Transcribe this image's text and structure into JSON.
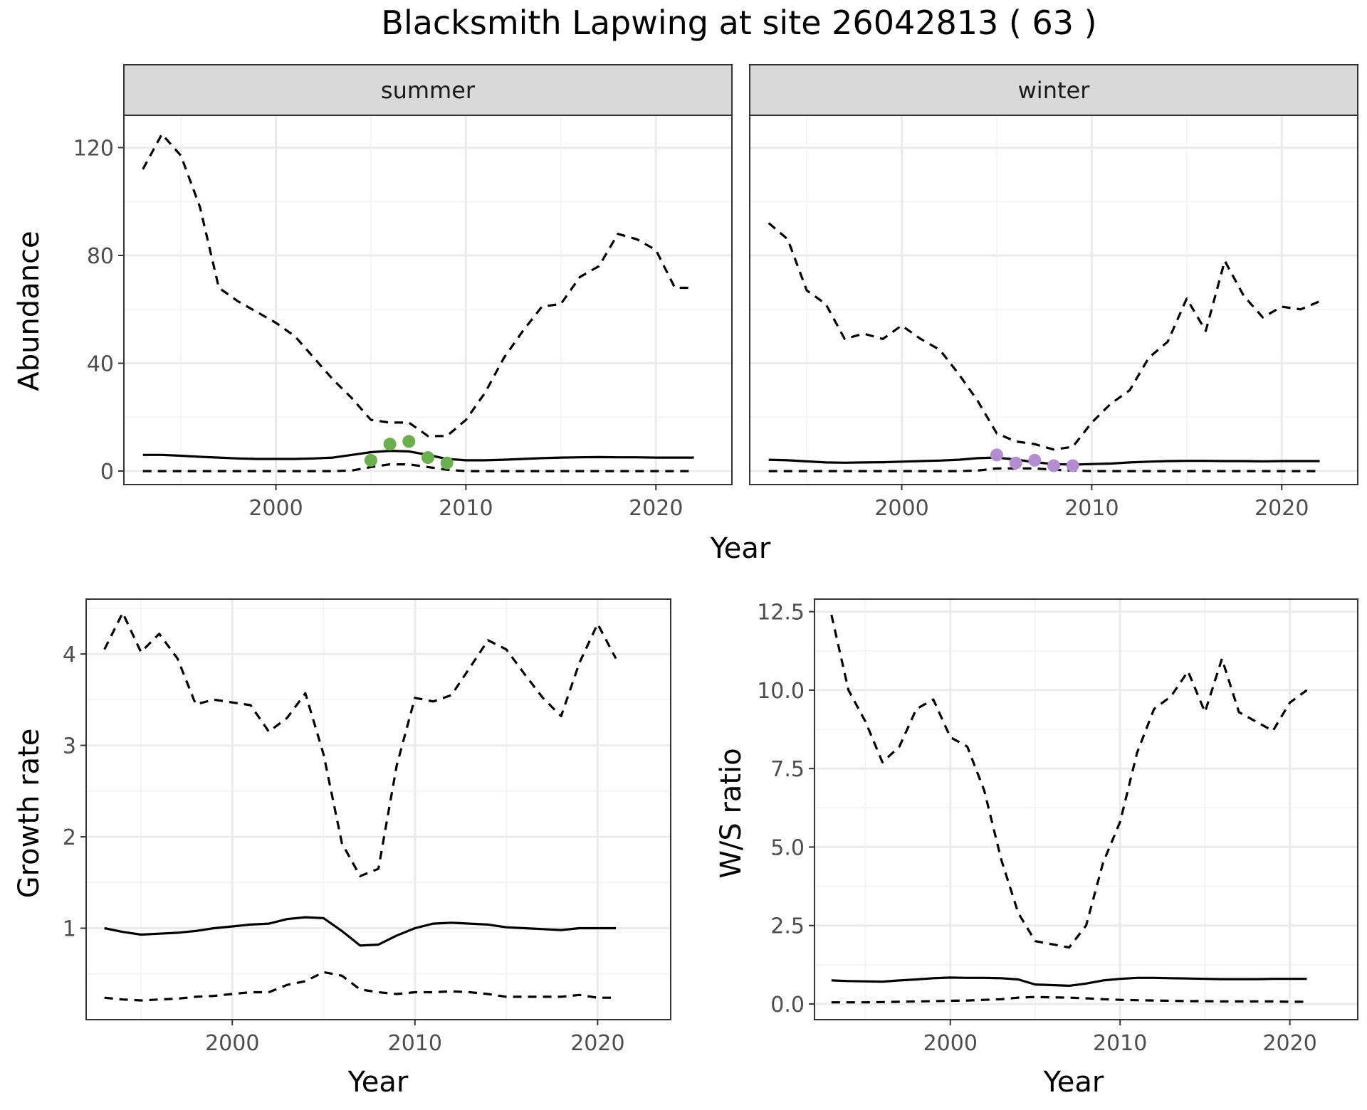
{
  "title": "Blacksmith Lapwing at site 26042813 ( 63 )",
  "colors": {
    "summer_points": "#6ab04c",
    "winter_points": "#b28dd1",
    "line": "#000000",
    "grid": "#ebebeb"
  },
  "chart_data": [
    {
      "id": "abundance-summer",
      "type": "line",
      "facet": "summer",
      "xlabel": "Year",
      "ylabel": "Abundance",
      "xlim": [
        1992,
        2024
      ],
      "ylim": [
        -5,
        132
      ],
      "xticks": [
        2000,
        2010,
        2020
      ],
      "yticks": [
        0,
        40,
        80,
        120
      ],
      "x": [
        1993,
        1994,
        1995,
        1996,
        1997,
        1998,
        1999,
        2000,
        2001,
        2002,
        2003,
        2004,
        2005,
        2006,
        2007,
        2008,
        2009,
        2010,
        2011,
        2012,
        2013,
        2014,
        2015,
        2016,
        2017,
        2018,
        2019,
        2020,
        2021,
        2022
      ],
      "series": [
        {
          "role": "upper",
          "style": "dashed",
          "values": [
            112,
            125,
            117,
            98,
            68,
            63,
            59,
            55,
            50,
            42,
            34,
            27,
            19,
            18,
            18,
            13,
            13,
            19,
            29,
            42,
            52,
            61,
            62,
            72,
            76,
            88,
            86,
            82,
            68,
            68
          ]
        },
        {
          "role": "mean",
          "style": "solid",
          "values": [
            6,
            6,
            5.7,
            5.3,
            5,
            4.7,
            4.5,
            4.5,
            4.5,
            4.7,
            5,
            6,
            7,
            7.5,
            7.3,
            6,
            4.5,
            4,
            4,
            4.2,
            4.5,
            4.8,
            5,
            5.1,
            5.2,
            5.1,
            5.1,
            5,
            5,
            5
          ]
        },
        {
          "role": "lower",
          "style": "dashed",
          "values": [
            0,
            0,
            0,
            0,
            0,
            0,
            0,
            0,
            0,
            0,
            0,
            0.2,
            1.5,
            2.5,
            2.5,
            1.5,
            0.5,
            0,
            0,
            0,
            0,
            0,
            0,
            0,
            0,
            0,
            0,
            0,
            0,
            0
          ]
        }
      ],
      "points": {
        "x": [
          2005,
          2006,
          2007,
          2008,
          2009
        ],
        "y": [
          4,
          10,
          11,
          5,
          3
        ]
      }
    },
    {
      "id": "abundance-winter",
      "type": "line",
      "facet": "winter",
      "xlabel": "Year",
      "ylabel": "",
      "xlim": [
        1992,
        2024
      ],
      "ylim": [
        -5,
        132
      ],
      "xticks": [
        2000,
        2010,
        2020
      ],
      "yticks": [
        0,
        40,
        80,
        120
      ],
      "x": [
        1993,
        1994,
        1995,
        1996,
        1997,
        1998,
        1999,
        2000,
        2001,
        2002,
        2003,
        2004,
        2005,
        2006,
        2007,
        2008,
        2009,
        2010,
        2011,
        2012,
        2013,
        2014,
        2015,
        2016,
        2017,
        2018,
        2019,
        2020,
        2021,
        2022
      ],
      "series": [
        {
          "role": "upper",
          "style": "dashed",
          "values": [
            92,
            86,
            67,
            62,
            49,
            51,
            49,
            54,
            49,
            45,
            36,
            26,
            14,
            11,
            10,
            8,
            9,
            18,
            25,
            30,
            42,
            48,
            64,
            52,
            78,
            65,
            57,
            61,
            60,
            63
          ]
        },
        {
          "role": "mean",
          "style": "solid",
          "values": [
            4.2,
            4,
            3.6,
            3.2,
            3.1,
            3.2,
            3.3,
            3.5,
            3.7,
            3.9,
            4.2,
            4.8,
            5,
            4.3,
            3.3,
            2.6,
            2.4,
            2.6,
            2.8,
            3.2,
            3.5,
            3.7,
            3.8,
            3.8,
            3.7,
            3.7,
            3.6,
            3.7,
            3.7,
            3.7
          ]
        },
        {
          "role": "lower",
          "style": "dashed",
          "values": [
            0,
            0,
            0,
            0,
            0,
            0,
            0,
            0,
            0,
            0,
            0,
            0.2,
            1,
            1,
            1,
            0.5,
            0.2,
            0,
            0,
            0,
            0,
            0,
            0,
            0,
            0,
            0,
            0,
            0,
            0,
            0
          ]
        }
      ],
      "points": {
        "x": [
          2005,
          2006,
          2007,
          2008,
          2009
        ],
        "y": [
          6,
          3,
          4,
          2,
          2
        ]
      }
    },
    {
      "id": "growth-rate",
      "type": "line",
      "xlabel": "Year",
      "ylabel": "Growth rate",
      "xlim": [
        1992,
        2024
      ],
      "ylim": [
        0,
        4.6
      ],
      "xticks": [
        2000,
        2010,
        2020
      ],
      "yticks": [
        1,
        2,
        3,
        4
      ],
      "x": [
        1993,
        1994,
        1995,
        1996,
        1997,
        1998,
        1999,
        2000,
        2001,
        2002,
        2003,
        2004,
        2005,
        2006,
        2007,
        2008,
        2009,
        2010,
        2011,
        2012,
        2013,
        2014,
        2015,
        2016,
        2017,
        2018,
        2019,
        2020,
        2021
      ],
      "series": [
        {
          "role": "upper",
          "style": "dashed",
          "values": [
            4.05,
            4.45,
            4.02,
            4.22,
            3.95,
            3.45,
            3.5,
            3.47,
            3.44,
            3.15,
            3.3,
            3.57,
            2.9,
            1.93,
            1.57,
            1.65,
            2.78,
            3.52,
            3.48,
            3.55,
            3.85,
            4.15,
            4.05,
            3.78,
            3.52,
            3.32,
            3.9,
            4.33,
            3.95
          ]
        },
        {
          "role": "mean",
          "style": "solid",
          "values": [
            1,
            0.96,
            0.93,
            0.94,
            0.95,
            0.97,
            1,
            1.02,
            1.04,
            1.05,
            1.1,
            1.12,
            1.11,
            0.97,
            0.81,
            0.82,
            0.92,
            1,
            1.05,
            1.06,
            1.05,
            1.04,
            1.01,
            1,
            0.99,
            0.98,
            1,
            1,
            1
          ]
        },
        {
          "role": "lower",
          "style": "dashed",
          "values": [
            0.24,
            0.22,
            0.21,
            0.22,
            0.23,
            0.25,
            0.26,
            0.28,
            0.3,
            0.3,
            0.38,
            0.42,
            0.52,
            0.48,
            0.33,
            0.3,
            0.28,
            0.3,
            0.3,
            0.31,
            0.3,
            0.28,
            0.25,
            0.25,
            0.25,
            0.25,
            0.27,
            0.24,
            0.24
          ]
        }
      ]
    },
    {
      "id": "ws-ratio",
      "type": "line",
      "xlabel": "Year",
      "ylabel": "W/S ratio",
      "xlim": [
        1992,
        2024
      ],
      "ylim": [
        -0.5,
        12.9
      ],
      "xticks": [
        2000,
        2010,
        2020
      ],
      "yticks": [
        0.0,
        2.5,
        5.0,
        7.5,
        10.0,
        12.5
      ],
      "ytick_labels": [
        "0.0",
        "2.5",
        "5.0",
        "7.5",
        "10.0",
        "12.5"
      ],
      "x": [
        1993,
        1994,
        1995,
        1996,
        1997,
        1998,
        1999,
        2000,
        2001,
        2002,
        2003,
        2004,
        2005,
        2006,
        2007,
        2008,
        2009,
        2010,
        2011,
        2012,
        2013,
        2014,
        2015,
        2016,
        2017,
        2018,
        2019,
        2020,
        2021
      ],
      "series": [
        {
          "role": "upper",
          "style": "dashed",
          "values": [
            12.4,
            10,
            9,
            7.7,
            8.2,
            9.4,
            9.7,
            8.5,
            8.2,
            6.8,
            4.6,
            2.9,
            2,
            1.9,
            1.8,
            2.5,
            4.5,
            5.8,
            8,
            9.4,
            9.8,
            10.6,
            9.3,
            11,
            9.3,
            9,
            8.7,
            9.6,
            10
          ]
        },
        {
          "role": "mean",
          "style": "solid",
          "values": [
            0.75,
            0.73,
            0.72,
            0.71,
            0.75,
            0.78,
            0.82,
            0.84,
            0.83,
            0.83,
            0.82,
            0.78,
            0.62,
            0.6,
            0.58,
            0.65,
            0.75,
            0.8,
            0.83,
            0.83,
            0.82,
            0.81,
            0.8,
            0.79,
            0.79,
            0.79,
            0.8,
            0.8,
            0.8
          ]
        },
        {
          "role": "lower",
          "style": "dashed",
          "values": [
            0.05,
            0.05,
            0.05,
            0.06,
            0.07,
            0.08,
            0.09,
            0.1,
            0.11,
            0.13,
            0.15,
            0.2,
            0.22,
            0.21,
            0.2,
            0.18,
            0.15,
            0.13,
            0.12,
            0.11,
            0.1,
            0.09,
            0.09,
            0.08,
            0.08,
            0.08,
            0.08,
            0.07,
            0.07
          ]
        }
      ]
    }
  ]
}
